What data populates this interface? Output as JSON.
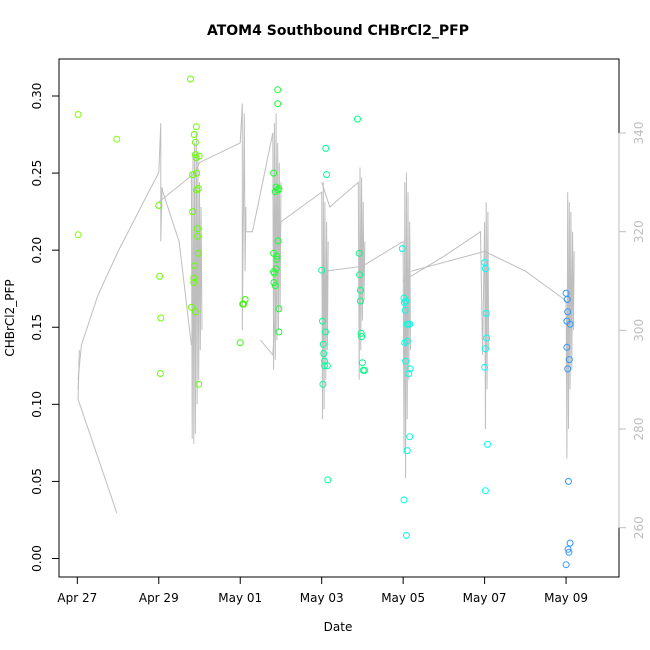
{
  "chart_data": {
    "type": "scatter",
    "title": "ATOM4 Southbound CHBrCl2_PFP",
    "xlabel": "Date",
    "ylabel": "CHBrCl2_PFP",
    "x_ticks": [
      {
        "label": "Apr 27",
        "day": 0
      },
      {
        "label": "Apr 29",
        "day": 2
      },
      {
        "label": "May 01",
        "day": 4
      },
      {
        "label": "May 03",
        "day": 6
      },
      {
        "label": "May 05",
        "day": 8
      },
      {
        "label": "May 07",
        "day": 10
      },
      {
        "label": "May 09",
        "day": 12
      }
    ],
    "xlim": [
      -0.45,
      13.3
    ],
    "ylim": [
      -0.012,
      0.324
    ],
    "y_ticks": [
      "0.00",
      "0.05",
      "0.10",
      "0.15",
      "0.20",
      "0.25",
      "0.30"
    ],
    "y2lim": [
      250,
      355
    ],
    "y2_ticks": [
      "260",
      "280",
      "300",
      "320",
      "340"
    ],
    "grid": false,
    "point_series": [
      {
        "color": "#80ff00",
        "points": [
          [
            0.02,
            0.288
          ],
          [
            0.02,
            0.21
          ],
          [
            0.97,
            0.272
          ]
        ]
      },
      {
        "color": "#66ff00",
        "points": [
          [
            2.0,
            0.229
          ],
          [
            2.02,
            0.183
          ],
          [
            2.05,
            0.156
          ],
          [
            2.04,
            0.12
          ],
          [
            2.78,
            0.311
          ],
          [
            2.8,
            0.163
          ],
          [
            2.83,
            0.249
          ],
          [
            2.83,
            0.225
          ],
          [
            2.86,
            0.182
          ],
          [
            2.86,
            0.179
          ],
          [
            2.87,
            0.275
          ],
          [
            2.88,
            0.19
          ],
          [
            2.9,
            0.262
          ],
          [
            2.9,
            0.27
          ],
          [
            2.92,
            0.28
          ],
          [
            2.92,
            0.26
          ],
          [
            2.93,
            0.25
          ],
          [
            2.93,
            0.239
          ],
          [
            2.95,
            0.214
          ],
          [
            2.95,
            0.209
          ],
          [
            2.97,
            0.24
          ],
          [
            2.97,
            0.198
          ],
          [
            2.99,
            0.261
          ],
          [
            2.9,
            0.16
          ],
          [
            2.98,
            0.113
          ]
        ]
      },
      {
        "color": "#33ff00",
        "points": [
          [
            4.0,
            0.14
          ],
          [
            4.06,
            0.165
          ],
          [
            4.08,
            0.165
          ],
          [
            4.12,
            0.168
          ]
        ]
      },
      {
        "color": "#1aff33",
        "points": [
          [
            4.82,
            0.25
          ],
          [
            4.82,
            0.198
          ],
          [
            4.82,
            0.186
          ],
          [
            4.83,
            0.179
          ],
          [
            4.84,
            0.185
          ],
          [
            4.86,
            0.177
          ],
          [
            4.86,
            0.238
          ],
          [
            4.88,
            0.241
          ],
          [
            4.88,
            0.188
          ],
          [
            4.9,
            0.196
          ],
          [
            4.9,
            0.194
          ],
          [
            4.92,
            0.304
          ],
          [
            4.92,
            0.295
          ],
          [
            4.93,
            0.239
          ],
          [
            4.93,
            0.206
          ],
          [
            4.95,
            0.24
          ],
          [
            4.95,
            0.162
          ],
          [
            4.95,
            0.147
          ]
        ]
      },
      {
        "color": "#00ff99",
        "points": [
          [
            6.0,
            0.187
          ],
          [
            6.02,
            0.154
          ],
          [
            6.04,
            0.139
          ],
          [
            6.05,
            0.133
          ],
          [
            6.07,
            0.128
          ],
          [
            6.07,
            0.125
          ],
          [
            6.09,
            0.147
          ],
          [
            6.1,
            0.266
          ],
          [
            6.12,
            0.249
          ],
          [
            6.14,
            0.125
          ],
          [
            6.15,
            0.051
          ],
          [
            6.03,
            0.113
          ]
        ]
      },
      {
        "color": "#00ff80",
        "points": [
          [
            6.88,
            0.285
          ],
          [
            6.92,
            0.198
          ],
          [
            6.93,
            0.184
          ],
          [
            6.95,
            0.174
          ],
          [
            6.95,
            0.167
          ],
          [
            6.97,
            0.146
          ],
          [
            6.98,
            0.144
          ],
          [
            7.0,
            0.127
          ],
          [
            7.02,
            0.122
          ],
          [
            7.05,
            0.122
          ]
        ]
      },
      {
        "color": "#00ffff",
        "points": [
          [
            10.0,
            0.192
          ],
          [
            10.02,
            0.188
          ],
          [
            10.04,
            0.159
          ],
          [
            10.05,
            0.143
          ],
          [
            10.02,
            0.136
          ],
          [
            10.0,
            0.124
          ],
          [
            10.07,
            0.074
          ],
          [
            10.02,
            0.044
          ]
        ]
      },
      {
        "color": "#00ffe6",
        "points": [
          [
            7.98,
            0.201
          ],
          [
            8.02,
            0.169
          ],
          [
            8.03,
            0.166
          ],
          [
            8.06,
            0.167
          ],
          [
            8.05,
            0.161
          ],
          [
            8.1,
            0.152
          ],
          [
            8.12,
            0.152
          ],
          [
            8.16,
            0.152
          ],
          [
            8.04,
            0.14
          ],
          [
            8.1,
            0.141
          ],
          [
            8.06,
            0.128
          ],
          [
            8.14,
            0.12
          ],
          [
            8.17,
            0.123
          ],
          [
            8.16,
            0.079
          ],
          [
            8.1,
            0.07
          ],
          [
            8.02,
            0.038
          ],
          [
            8.08,
            0.015
          ]
        ]
      },
      {
        "color": "#3399ff",
        "points": [
          [
            12.0,
            0.172
          ],
          [
            12.03,
            0.168
          ],
          [
            12.02,
            0.154
          ],
          [
            12.04,
            0.16
          ],
          [
            12.1,
            0.152
          ],
          [
            12.02,
            0.137
          ],
          [
            12.08,
            0.129
          ],
          [
            12.04,
            0.123
          ],
          [
            12.06,
            0.05
          ],
          [
            12.1,
            0.01
          ],
          [
            12.05,
            0.006
          ],
          [
            12.07,
            0.004
          ],
          [
            12.0,
            -0.004
          ]
        ]
      }
    ],
    "line_series": [
      {
        "color": "#bebebe",
        "axis": "right",
        "x": [
          0.02,
          0.05,
          0.05,
          0.02,
          0.97
        ],
        "y": [
          288,
          296,
          296,
          286,
          263
        ]
      },
      {
        "color": "#bebebe",
        "axis": "right",
        "x": [
          0.02,
          0.1,
          0.5,
          1.0,
          1.5,
          2.0,
          2.05,
          2.05,
          2.08,
          2.1,
          2.5,
          2.8
        ],
        "y": [
          290,
          297,
          307,
          316,
          324,
          332,
          342,
          318,
          329,
          328,
          318,
          297
        ]
      },
      {
        "color": "#bebebe",
        "axis": "right",
        "x": [
          2.8,
          2.82,
          2.84,
          2.86,
          2.88,
          2.9,
          2.92,
          2.94,
          2.96,
          2.98,
          3.0,
          3.02,
          3.04,
          3.06
        ],
        "y": [
          332,
          278,
          336,
          277,
          338,
          279,
          340,
          285,
          336,
          290,
          330,
          296,
          325,
          300
        ]
      },
      {
        "color": "#bebebe",
        "axis": "right",
        "x": [
          2.0,
          2.9,
          3.0,
          4.0,
          4.05,
          4.05,
          4.1,
          4.12,
          4.14,
          4.14
        ],
        "y": [
          326,
          332,
          334,
          338,
          346,
          300,
          344,
          312,
          325,
          320
        ]
      },
      {
        "color": "#bebebe",
        "axis": "right",
        "x": [
          4.14,
          4.3,
          4.8,
          4.82,
          4.84,
          4.86,
          4.88,
          4.9,
          4.92,
          4.94,
          4.96,
          4.98,
          5.0
        ],
        "y": [
          320,
          320,
          340,
          292,
          342,
          294,
          344,
          298,
          338,
          300,
          334,
          304,
          330
        ]
      },
      {
        "color": "#bebebe",
        "axis": "right",
        "x": [
          4.5,
          4.8,
          5.0,
          5.5,
          6.0,
          6.02,
          6.04,
          6.06,
          6.08,
          6.1,
          6.12,
          6.14,
          6.16
        ],
        "y": [
          298,
          295,
          322,
          325,
          328,
          282,
          330,
          284,
          326,
          290,
          322,
          296,
          318
        ]
      },
      {
        "color": "#bebebe",
        "axis": "right",
        "x": [
          6.0,
          6.2,
          6.9,
          6.92,
          6.94,
          6.96,
          6.98,
          7.0,
          7.02,
          7.04,
          7.06
        ],
        "y": [
          330,
          325,
          330,
          290,
          333,
          296,
          331,
          302,
          326,
          306,
          318
        ]
      },
      {
        "color": "#bebebe",
        "axis": "right",
        "x": [
          6.1,
          7.0,
          8.0,
          8.02,
          8.04,
          8.06,
          8.08,
          8.1,
          8.12,
          8.14,
          8.16,
          8.18
        ],
        "y": [
          312,
          313,
          318,
          275,
          330,
          270,
          332,
          282,
          328,
          290,
          322,
          296
        ]
      },
      {
        "color": "#bebebe",
        "axis": "right",
        "x": [
          8.0,
          9.0,
          9.9,
          9.95,
          10.0,
          10.02,
          10.04,
          10.06,
          10.08,
          10.1
        ],
        "y": [
          310,
          315,
          320,
          295,
          322,
          280,
          326,
          288,
          324,
          296
        ]
      },
      {
        "color": "#bebebe",
        "axis": "right",
        "x": [
          8.2,
          10.0,
          11.0,
          11.5,
          12.0,
          12.02,
          12.04,
          12.06,
          12.08,
          12.1,
          12.12,
          12.14,
          12.16,
          12.18,
          12.2
        ],
        "y": [
          312,
          316,
          312,
          309,
          306,
          274,
          328,
          280,
          326,
          288,
          324,
          292,
          320,
          300,
          316
        ]
      }
    ]
  }
}
